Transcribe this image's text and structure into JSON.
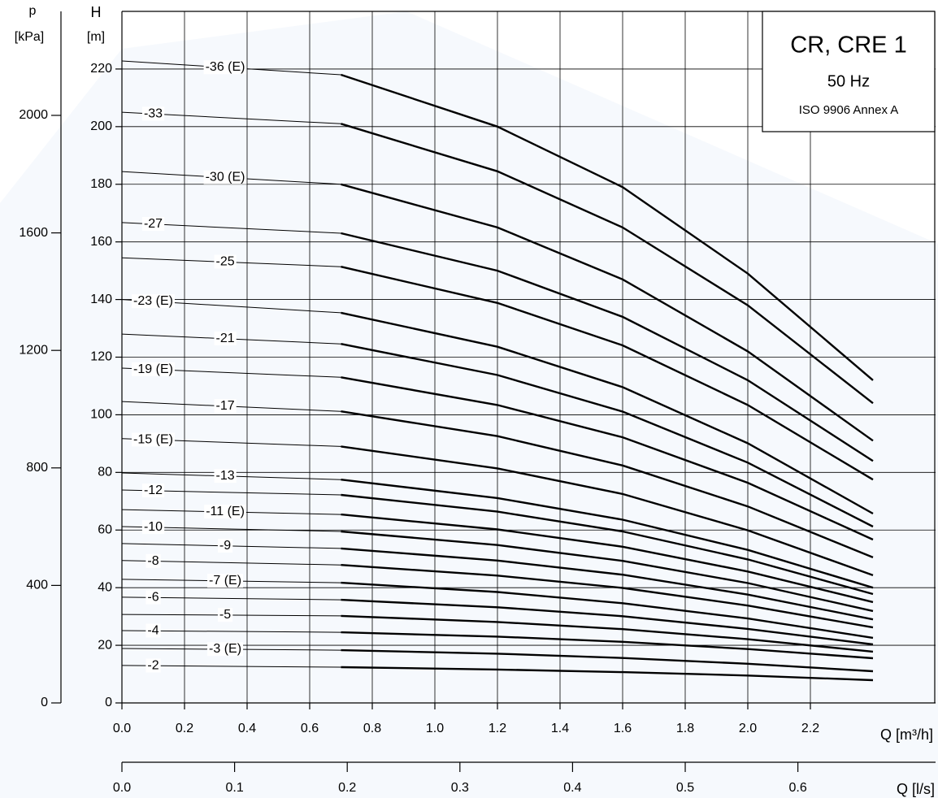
{
  "chart_data": {
    "type": "line",
    "title": "CR, CRE 1",
    "subtitle": "50 Hz",
    "annotation": "ISO 9906 Annex A",
    "x_label": "Q [m³/h]",
    "x2_label": "Q [l/s]",
    "y_label": "H",
    "y_unit": "[m]",
    "y2_label": "p",
    "y2_unit": "[kPa]",
    "color": "#000000",
    "grid": true,
    "xlim": [
      0,
      2.6
    ],
    "x2lim": [
      0,
      0.7222
    ],
    "ylim": [
      0,
      240
    ],
    "y2lim": [
      0,
      2354
    ],
    "xticks": [
      {
        "value": 0,
        "label": "0.0"
      },
      0.2,
      0.4,
      0.6,
      0.8,
      {
        "value": 1,
        "label": "1.0"
      },
      1.2,
      1.4,
      1.6,
      1.8,
      {
        "value": 2,
        "label": "2.0"
      },
      2.2
    ],
    "x2ticks": [
      {
        "value": 0,
        "label": "0.0"
      },
      0.1,
      0.2,
      0.3,
      0.4,
      0.5,
      0.6
    ],
    "yticks": [
      0,
      20,
      40,
      60,
      80,
      100,
      120,
      140,
      160,
      180,
      200,
      220
    ],
    "y2ticks": [
      0,
      400,
      800,
      1200,
      1600,
      2000
    ],
    "x": [
      0,
      0.7,
      1.2,
      1.6,
      2.0,
      2.4
    ],
    "series": [
      {
        "name": "-36 (E)",
        "values": [
          222.8,
          218,
          200,
          179,
          149,
          112
        ]
      },
      {
        "name": "-33",
        "values": [
          205,
          201,
          184.5,
          165,
          138,
          104
        ]
      },
      {
        "name": "-30 (E)",
        "values": [
          184.4,
          180,
          165,
          147,
          122,
          91
        ]
      },
      {
        "name": "-27",
        "values": [
          166.7,
          163,
          150,
          134,
          112,
          84
        ]
      },
      {
        "name": "-25",
        "values": [
          154.5,
          151.4,
          138.8,
          124.1,
          103.4,
          77.5
        ]
      },
      {
        "name": "-23 (E)",
        "values": [
          140,
          135.4,
          123.6,
          109.6,
          90.1,
          65.7
        ]
      },
      {
        "name": "-21",
        "values": [
          128,
          124.6,
          113.8,
          101.1,
          83.4,
          61.2
        ]
      },
      {
        "name": "-19 (E)",
        "values": [
          116.2,
          113,
          103.4,
          92.2,
          76.4,
          56.7
        ]
      },
      {
        "name": "-17",
        "values": [
          104.6,
          101.2,
          92.6,
          82.4,
          68.2,
          50.5
        ]
      },
      {
        "name": "-15 (E)",
        "values": [
          91.7,
          89,
          81.4,
          72.5,
          59.9,
          44.3
        ]
      },
      {
        "name": "-13",
        "values": [
          79.8,
          77.5,
          71.1,
          63.6,
          53.1,
          40
        ]
      },
      {
        "name": "-12",
        "values": [
          73.9,
          72.2,
          66.4,
          59.5,
          49.8,
          37.8
        ]
      },
      {
        "name": "-11 (E)",
        "values": [
          67.1,
          65.4,
          60.2,
          54.2,
          45.6,
          35
        ]
      },
      {
        "name": "-10",
        "values": [
          61.2,
          59.5,
          54.8,
          49.3,
          41.6,
          31.9
        ]
      },
      {
        "name": "-9",
        "values": [
          55.3,
          53.6,
          49.4,
          44.5,
          37.6,
          29
        ]
      },
      {
        "name": "-8",
        "values": [
          49.4,
          47.9,
          44.2,
          39.9,
          33.8,
          26.2
        ]
      },
      {
        "name": "-7 (E)",
        "values": [
          42.9,
          41.7,
          38.5,
          34.6,
          29.3,
          22.6
        ]
      },
      {
        "name": "-6",
        "values": [
          36.7,
          35.8,
          33.2,
          30.1,
          25.7,
          20.3
        ]
      },
      {
        "name": "-5",
        "values": [
          30.7,
          30.2,
          28.1,
          25.6,
          22.1,
          17.8
        ]
      },
      {
        "name": "-4",
        "values": [
          25.1,
          24.5,
          23,
          21.2,
          18.7,
          15.5
        ]
      },
      {
        "name": "-3 (E)",
        "values": [
          18.9,
          18.3,
          17.1,
          15.6,
          13.6,
          11
        ]
      },
      {
        "name": "-2",
        "values": [
          13,
          12.4,
          11.6,
          10.7,
          9.5,
          7.9
        ]
      }
    ]
  }
}
